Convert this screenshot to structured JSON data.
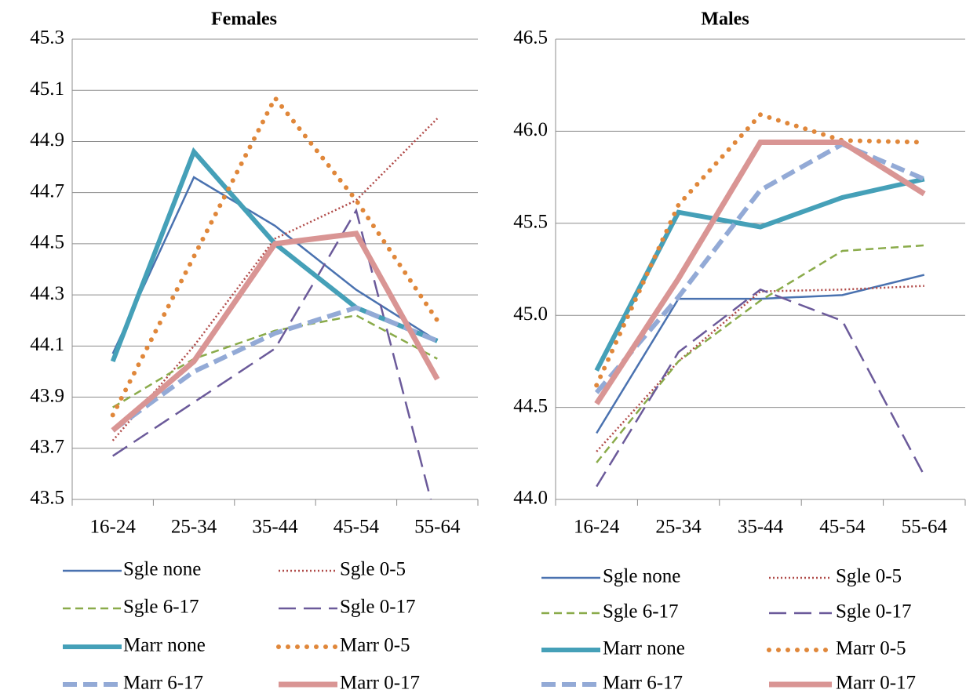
{
  "chart_data": [
    {
      "type": "line",
      "title": "Females",
      "categories": [
        "16-24",
        "25-34",
        "35-44",
        "45-54",
        "55-64"
      ],
      "ylim": [
        43.5,
        45.3
      ],
      "yticks": [
        43.5,
        43.7,
        43.9,
        44.1,
        44.3,
        44.5,
        44.7,
        44.9,
        45.1,
        45.3
      ],
      "grid": true,
      "series": [
        {
          "name": "Sgle none",
          "color": "#4a72b0",
          "values": [
            44.07,
            44.76,
            44.57,
            44.32,
            44.12
          ]
        },
        {
          "name": "Sgle 0-5",
          "color": "#b04a48",
          "values": [
            43.73,
            44.1,
            44.52,
            44.67,
            44.99
          ]
        },
        {
          "name": "Sgle 6-17",
          "color": "#8aab4a",
          "values": [
            43.86,
            44.05,
            44.16,
            44.22,
            44.05
          ]
        },
        {
          "name": "Sgle 0-17",
          "color": "#6b5a9a",
          "values": [
            43.67,
            43.88,
            44.09,
            44.63,
            43.4
          ]
        },
        {
          "name": "Marr none",
          "color": "#45a0b8",
          "values": [
            44.04,
            44.86,
            44.5,
            44.25,
            44.12
          ]
        },
        {
          "name": "Marr 0-5",
          "color": "#e0873a",
          "values": [
            43.83,
            44.45,
            45.07,
            44.67,
            44.2
          ]
        },
        {
          "name": "Marr 6-17",
          "color": "#93aad6",
          "values": [
            43.77,
            44.0,
            44.15,
            44.25,
            44.12
          ]
        },
        {
          "name": "Marr 0-17",
          "color": "#d99594",
          "values": [
            43.77,
            44.04,
            44.5,
            44.54,
            43.97
          ]
        }
      ]
    },
    {
      "type": "line",
      "title": "Males",
      "categories": [
        "16-24",
        "25-34",
        "35-44",
        "45-54",
        "55-64"
      ],
      "ylim": [
        44.0,
        46.5
      ],
      "yticks": [
        {
          "value": 44,
          "label": "44.0"
        },
        44.5,
        {
          "value": 45,
          "label": "45.0"
        },
        45.5,
        {
          "value": 46,
          "label": "46.0"
        },
        46.5
      ],
      "grid": true,
      "series": [
        {
          "name": "Sgle none",
          "color": "#4a72b0",
          "values": [
            44.36,
            45.09,
            45.09,
            45.11,
            45.22
          ]
        },
        {
          "name": "Sgle 0-5",
          "color": "#b04a48",
          "values": [
            44.26,
            44.75,
            45.13,
            45.14,
            45.16
          ]
        },
        {
          "name": "Sgle 6-17",
          "color": "#8aab4a",
          "values": [
            44.2,
            44.75,
            45.08,
            45.35,
            45.38
          ]
        },
        {
          "name": "Sgle 0-17",
          "color": "#6b5a9a",
          "values": [
            44.07,
            44.8,
            45.14,
            44.97,
            44.13
          ]
        },
        {
          "name": "Marr none",
          "color": "#45a0b8",
          "values": [
            44.7,
            45.56,
            45.48,
            45.64,
            45.74
          ]
        },
        {
          "name": "Marr 0-5",
          "color": "#e0873a",
          "values": [
            44.62,
            45.6,
            46.09,
            45.95,
            45.94
          ]
        },
        {
          "name": "Marr 6-17",
          "color": "#93aad6",
          "values": [
            44.58,
            45.1,
            45.68,
            45.93,
            45.74
          ]
        },
        {
          "name": "Marr 0-17",
          "color": "#d99594",
          "values": [
            44.52,
            45.2,
            45.94,
            45.94,
            45.66
          ]
        }
      ]
    }
  ]
}
